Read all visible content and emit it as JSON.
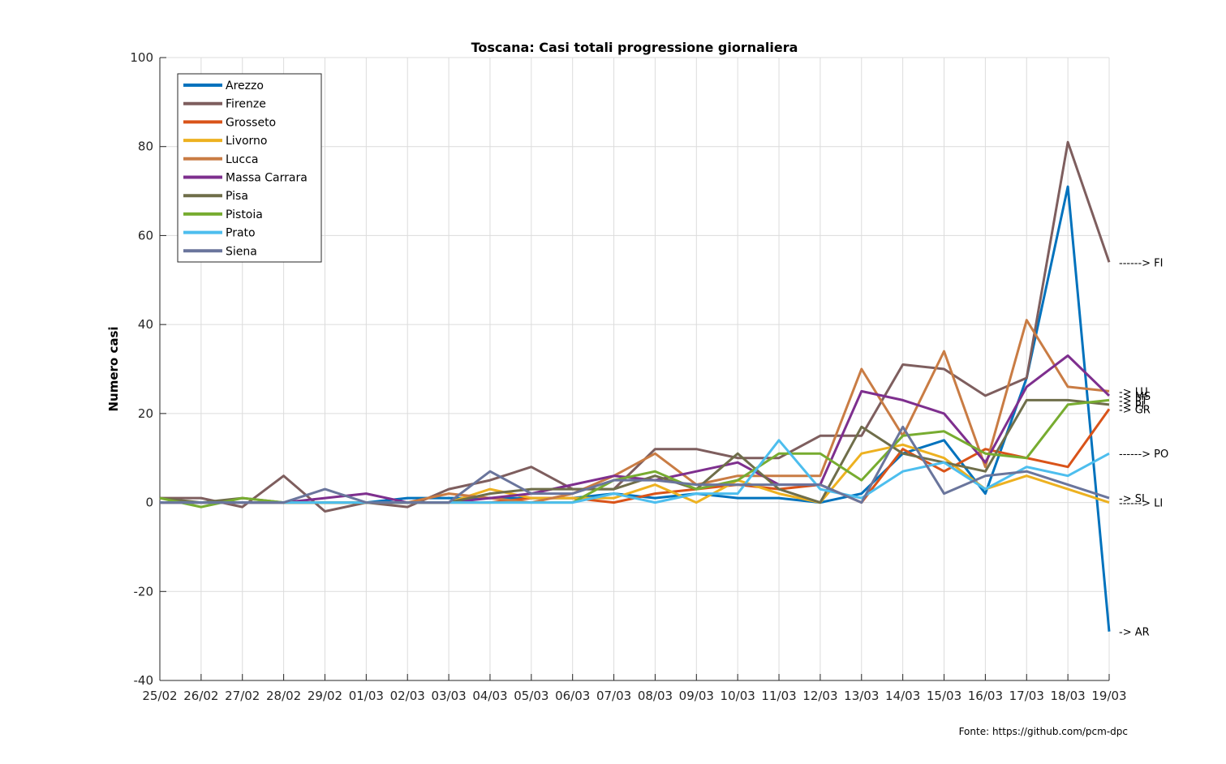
{
  "chart_data": {
    "type": "line",
    "title": "Toscana: Casi totali progressione giornaliera",
    "ylabel": "Numero casi",
    "xlabel": "",
    "ylim": [
      -40,
      100
    ],
    "yticks": [
      -40,
      -20,
      0,
      20,
      40,
      60,
      80,
      100
    ],
    "grid": true,
    "legend_position": "top-left",
    "categories": [
      "25/02",
      "26/02",
      "27/02",
      "28/02",
      "29/02",
      "01/03",
      "02/03",
      "03/03",
      "04/03",
      "05/03",
      "06/03",
      "07/03",
      "08/03",
      "09/03",
      "10/03",
      "11/03",
      "12/03",
      "13/03",
      "14/03",
      "15/03",
      "16/03",
      "17/03",
      "18/03",
      "19/03"
    ],
    "series": [
      {
        "name": "Arezzo",
        "color": "#0072BD",
        "values": [
          0,
          0,
          0,
          0,
          0,
          0,
          1,
          1,
          1,
          1,
          1,
          2,
          1,
          2,
          1,
          1,
          0,
          2,
          11,
          14,
          2,
          28,
          71,
          -29
        ]
      },
      {
        "name": "Firenze",
        "color": "#7E5E5E",
        "values": [
          1,
          1,
          -1,
          6,
          -2,
          0,
          -1,
          3,
          5,
          8,
          3,
          3,
          12,
          12,
          10,
          10,
          15,
          15,
          31,
          30,
          24,
          28,
          81,
          54
        ]
      },
      {
        "name": "Grosseto",
        "color": "#D95319",
        "values": [
          0,
          0,
          0,
          0,
          0,
          0,
          0,
          0,
          0,
          1,
          1,
          0,
          2,
          3,
          4,
          3,
          4,
          0,
          12,
          7,
          12,
          10,
          8,
          21
        ]
      },
      {
        "name": "Livorno",
        "color": "#EDB120",
        "values": [
          0,
          0,
          0,
          0,
          0,
          0,
          0,
          0,
          3,
          1,
          1,
          1,
          4,
          0,
          5,
          2,
          0,
          11,
          13,
          10,
          3,
          6,
          3,
          0
        ]
      },
      {
        "name": "Lucca",
        "color": "#C97C44",
        "values": [
          0,
          0,
          0,
          0,
          0,
          0,
          0,
          2,
          1,
          0,
          2,
          6,
          11,
          4,
          6,
          6,
          6,
          30,
          15,
          34,
          8,
          41,
          26,
          25
        ]
      },
      {
        "name": "Massa Carrara",
        "color": "#7E2F8E",
        "values": [
          0,
          0,
          0,
          0,
          1,
          2,
          0,
          0,
          1,
          2,
          4,
          6,
          5,
          7,
          9,
          4,
          4,
          25,
          23,
          20,
          9,
          26,
          33,
          24
        ]
      },
      {
        "name": "Pisa",
        "color": "#6F6E4A",
        "values": [
          1,
          0,
          1,
          0,
          0,
          0,
          0,
          0,
          2,
          3,
          3,
          3,
          6,
          3,
          11,
          3,
          0,
          17,
          11,
          9,
          7,
          23,
          23,
          22
        ]
      },
      {
        "name": "Pistoia",
        "color": "#77AC30",
        "values": [
          1,
          -1,
          1,
          0,
          0,
          0,
          0,
          0,
          0,
          0,
          0,
          5,
          7,
          3,
          5,
          11,
          11,
          5,
          15,
          16,
          11,
          10,
          22,
          23
        ]
      },
      {
        "name": "Prato",
        "color": "#4DBEEE",
        "values": [
          0,
          0,
          0,
          0,
          0,
          0,
          0,
          0,
          0,
          0,
          0,
          2,
          0,
          2,
          2,
          14,
          3,
          1,
          7,
          9,
          3,
          8,
          6,
          11
        ]
      },
      {
        "name": "Siena",
        "color": "#6A759C",
        "values": [
          0,
          0,
          0,
          0,
          3,
          0,
          0,
          0,
          7,
          2,
          2,
          5,
          5,
          4,
          4,
          4,
          4,
          0,
          17,
          2,
          6,
          7,
          4,
          1
        ]
      }
    ],
    "end_labels": [
      {
        "text": "------> FI",
        "value": 54
      },
      {
        "text": "-> LU",
        "value": 25
      },
      {
        "text": "-> PT",
        "value": 23
      },
      {
        "text": "-> MS",
        "value": 24
      },
      {
        "text": "-> PI",
        "value": 22
      },
      {
        "text": "-> GR",
        "value": 21
      },
      {
        "text": "------> PO",
        "value": 11
      },
      {
        "text": "-> SI",
        "value": 1
      },
      {
        "text": "------> LI",
        "value": 0
      },
      {
        "text": "-> AR",
        "value": -29
      }
    ],
    "source": "Fonte: https://github.com/pcm-dpc"
  }
}
